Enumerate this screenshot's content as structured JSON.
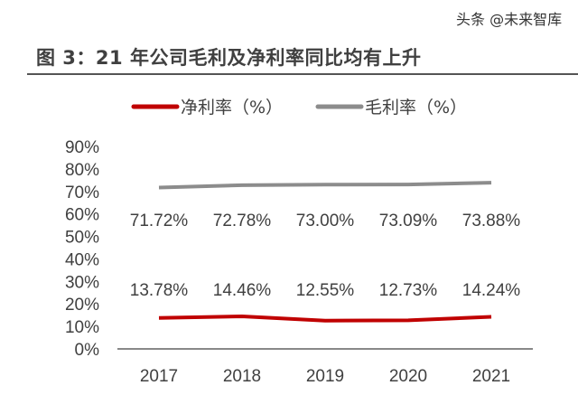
{
  "chart_data": {
    "type": "line",
    "title": "图 3：21 年公司毛利及净利率同比均有上升",
    "categories": [
      "2017",
      "2018",
      "2019",
      "2020",
      "2021"
    ],
    "series": [
      {
        "name": "净利率（%）",
        "color": "#c00000",
        "values": [
          13.78,
          14.46,
          12.55,
          12.73,
          14.24
        ],
        "labels": [
          "13.78%",
          "14.46%",
          "12.55%",
          "12.73%",
          "14.24%"
        ]
      },
      {
        "name": "毛利率（%）",
        "color": "#8c8c8c",
        "values": [
          71.72,
          72.78,
          73.0,
          73.09,
          73.88
        ],
        "labels": [
          "71.72%",
          "72.78%",
          "73.00%",
          "73.09%",
          "73.88%"
        ]
      }
    ],
    "yticks": [
      "0%",
      "10%",
      "20%",
      "30%",
      "40%",
      "50%",
      "60%",
      "70%",
      "80%",
      "90%"
    ],
    "ylim": [
      0,
      90
    ],
    "xlabel": "",
    "ylabel": "",
    "grid": false,
    "legend": "top-center"
  },
  "watermark": "头条 @未来智库"
}
